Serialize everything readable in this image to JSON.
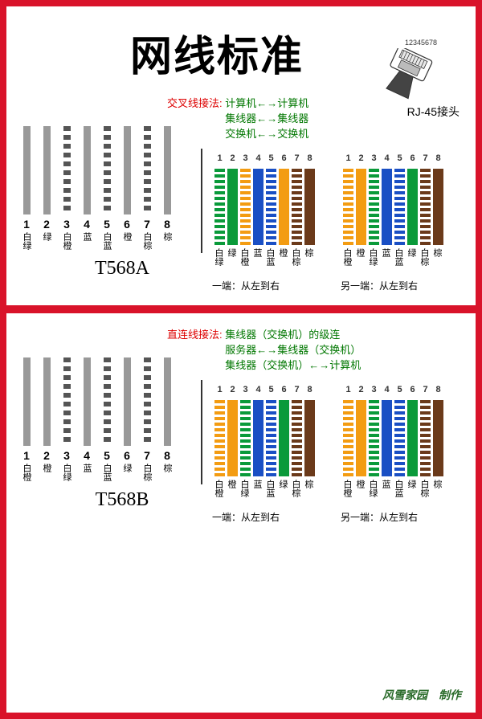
{
  "title": "网线标准",
  "rj45": {
    "numbers": "12345678",
    "label": "RJ-45接头"
  },
  "sectionA": {
    "method": {
      "title": "交叉线接法:",
      "lines": [
        "计算机←→计算机",
        "集线器←→集线器",
        "交换机←→交换机"
      ]
    },
    "big": {
      "name": "T568A",
      "pins": [
        {
          "n": "1",
          "label": "白绿",
          "style": "solid"
        },
        {
          "n": "2",
          "label": "绿",
          "style": "solid"
        },
        {
          "n": "3",
          "label": "白橙",
          "style": "dashed"
        },
        {
          "n": "4",
          "label": "蓝",
          "style": "solid"
        },
        {
          "n": "5",
          "label": "白蓝",
          "style": "dashed"
        },
        {
          "n": "6",
          "label": "橙",
          "style": "solid"
        },
        {
          "n": "7",
          "label": "白棕",
          "style": "dashed"
        },
        {
          "n": "8",
          "label": "棕",
          "style": "solid"
        }
      ]
    },
    "end1": {
      "note": "一端：从左到右",
      "pins": [
        {
          "n": "1",
          "label": "白绿",
          "color": "#0a9a3a",
          "striped": true
        },
        {
          "n": "2",
          "label": "绿",
          "color": "#0a9a3a",
          "striped": false
        },
        {
          "n": "3",
          "label": "白橙",
          "color": "#f39c12",
          "striped": true
        },
        {
          "n": "4",
          "label": "蓝",
          "color": "#1a4fc4",
          "striped": false
        },
        {
          "n": "5",
          "label": "白蓝",
          "color": "#1a4fc4",
          "striped": true
        },
        {
          "n": "6",
          "label": "橙",
          "color": "#f39c12",
          "striped": false
        },
        {
          "n": "7",
          "label": "白棕",
          "color": "#6b3a1a",
          "striped": true
        },
        {
          "n": "8",
          "label": "棕",
          "color": "#6b3a1a",
          "striped": false
        }
      ]
    },
    "end2": {
      "note": "另一端：从左到右",
      "pins": [
        {
          "n": "1",
          "label": "白橙",
          "color": "#f39c12",
          "striped": true
        },
        {
          "n": "2",
          "label": "橙",
          "color": "#f39c12",
          "striped": false
        },
        {
          "n": "3",
          "label": "白绿",
          "color": "#0a9a3a",
          "striped": true
        },
        {
          "n": "4",
          "label": "蓝",
          "color": "#1a4fc4",
          "striped": false
        },
        {
          "n": "5",
          "label": "白蓝",
          "color": "#1a4fc4",
          "striped": true
        },
        {
          "n": "6",
          "label": "绿",
          "color": "#0a9a3a",
          "striped": false
        },
        {
          "n": "7",
          "label": "白棕",
          "color": "#6b3a1a",
          "striped": true
        },
        {
          "n": "8",
          "label": "棕",
          "color": "#6b3a1a",
          "striped": false
        }
      ]
    }
  },
  "sectionB": {
    "method": {
      "title": "直连线接法:",
      "lines": [
        "集线器（交换机）的级连",
        "服务器←→集线器（交换机）",
        "集线器（交换机）←→计算机"
      ]
    },
    "big": {
      "name": "T568B",
      "pins": [
        {
          "n": "1",
          "label": "白橙",
          "style": "solid"
        },
        {
          "n": "2",
          "label": "橙",
          "style": "solid"
        },
        {
          "n": "3",
          "label": "白绿",
          "style": "dashed"
        },
        {
          "n": "4",
          "label": "蓝",
          "style": "solid"
        },
        {
          "n": "5",
          "label": "白蓝",
          "style": "dashed"
        },
        {
          "n": "6",
          "label": "绿",
          "style": "solid"
        },
        {
          "n": "7",
          "label": "白棕",
          "style": "dashed"
        },
        {
          "n": "8",
          "label": "棕",
          "style": "solid"
        }
      ]
    },
    "end1": {
      "note": "一端：从左到右",
      "pins": [
        {
          "n": "1",
          "label": "白橙",
          "color": "#f39c12",
          "striped": true
        },
        {
          "n": "2",
          "label": "橙",
          "color": "#f39c12",
          "striped": false
        },
        {
          "n": "3",
          "label": "白绿",
          "color": "#0a9a3a",
          "striped": true
        },
        {
          "n": "4",
          "label": "蓝",
          "color": "#1a4fc4",
          "striped": false
        },
        {
          "n": "5",
          "label": "白蓝",
          "color": "#1a4fc4",
          "striped": true
        },
        {
          "n": "6",
          "label": "绿",
          "color": "#0a9a3a",
          "striped": false
        },
        {
          "n": "7",
          "label": "白棕",
          "color": "#6b3a1a",
          "striped": true
        },
        {
          "n": "8",
          "label": "棕",
          "color": "#6b3a1a",
          "striped": false
        }
      ]
    },
    "end2": {
      "note": "另一端：从左到右",
      "pins": [
        {
          "n": "1",
          "label": "白橙",
          "color": "#f39c12",
          "striped": true
        },
        {
          "n": "2",
          "label": "橙",
          "color": "#f39c12",
          "striped": false
        },
        {
          "n": "3",
          "label": "白绿",
          "color": "#0a9a3a",
          "striped": true
        },
        {
          "n": "4",
          "label": "蓝",
          "color": "#1a4fc4",
          "striped": false
        },
        {
          "n": "5",
          "label": "白蓝",
          "color": "#1a4fc4",
          "striped": true
        },
        {
          "n": "6",
          "label": "绿",
          "color": "#0a9a3a",
          "striped": false
        },
        {
          "n": "7",
          "label": "白棕",
          "color": "#6b3a1a",
          "striped": true
        },
        {
          "n": "8",
          "label": "棕",
          "color": "#6b3a1a",
          "striped": false
        }
      ]
    }
  },
  "credit": "风雪家园　制作"
}
